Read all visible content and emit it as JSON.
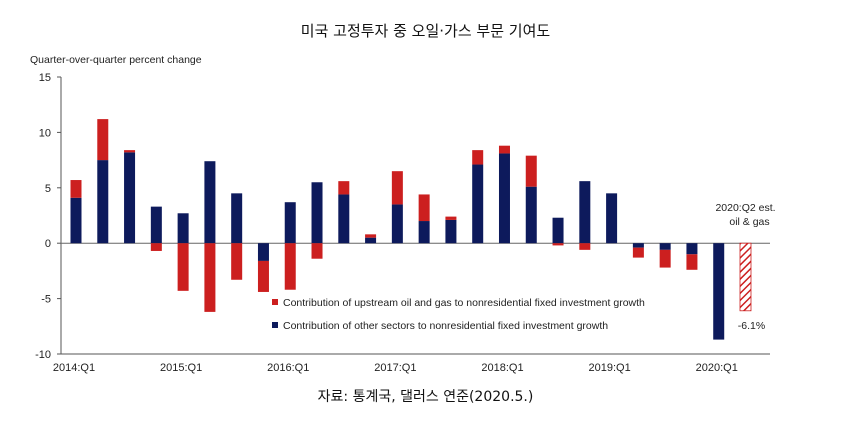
{
  "title": "미국 고정투자 중 오일·가스 부문 기여도",
  "source": "자료: 통계국, 댈러스 연준(2020.5.)",
  "chart_data": {
    "type": "bar",
    "stacked": true,
    "ylabel": "Quarter-over-quarter percent change",
    "ylim": [
      -10,
      15
    ],
    "yticks": [
      15,
      10,
      5,
      0,
      -5,
      -10
    ],
    "x_tick_labels": [
      "2014:Q1",
      "2015:Q1",
      "2016:Q1",
      "2017:Q1",
      "2018:Q1",
      "2019:Q1",
      "2020:Q1"
    ],
    "categories": [
      "2014:Q1",
      "2014:Q2",
      "2014:Q3",
      "2014:Q4",
      "2015:Q1",
      "2015:Q2",
      "2015:Q3",
      "2015:Q4",
      "2016:Q1",
      "2016:Q2",
      "2016:Q3",
      "2016:Q4",
      "2017:Q1",
      "2017:Q2",
      "2017:Q3",
      "2017:Q4",
      "2018:Q1",
      "2018:Q2",
      "2018:Q3",
      "2018:Q4",
      "2019:Q1",
      "2019:Q2",
      "2019:Q3",
      "2019:Q4",
      "2020:Q1",
      "2020:Q2"
    ],
    "series": [
      {
        "name": "Contribution of upstream oil and gas to nonresidential fixed investment growth",
        "color": "#cc1f1f",
        "values": [
          1.6,
          3.7,
          0.2,
          -0.7,
          -4.3,
          -6.2,
          -3.3,
          -2.8,
          -4.2,
          -1.4,
          1.2,
          0.3,
          3.0,
          2.4,
          0.3,
          1.3,
          0.7,
          2.8,
          -0.2,
          -0.6,
          0.0,
          -0.9,
          -1.6,
          -1.4,
          0.0,
          -6.1
        ]
      },
      {
        "name": "Contribution of other sectors to nonresidential fixed investment growth",
        "color": "#0d1a5c",
        "values": [
          4.1,
          7.5,
          8.2,
          3.3,
          2.7,
          7.4,
          4.5,
          -1.6,
          3.7,
          5.5,
          4.4,
          0.5,
          3.5,
          2.0,
          2.1,
          7.1,
          8.1,
          5.1,
          2.3,
          5.6,
          4.5,
          -0.4,
          -0.6,
          -1.0,
          -8.7,
          0.0
        ]
      }
    ],
    "estimate_category": "2020:Q2",
    "annotation_est": [
      "2020:Q2 est.",
      "oil & gas"
    ],
    "annotation_value": "-6.1%",
    "legend_position": "bottom-right",
    "grid": false
  }
}
